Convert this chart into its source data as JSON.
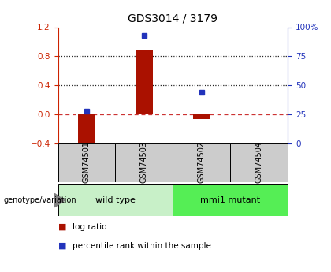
{
  "title": "GDS3014 / 3179",
  "samples": [
    "GSM74501",
    "GSM74503",
    "GSM74502",
    "GSM74504"
  ],
  "log_ratios": [
    -0.45,
    0.88,
    -0.06,
    0.0
  ],
  "percentile_ranks": [
    28,
    93,
    44,
    null
  ],
  "groups": [
    {
      "label": "wild type",
      "indices": [
        0,
        1
      ],
      "color": "#c8f0c8"
    },
    {
      "label": "mmi1 mutant",
      "indices": [
        2,
        3
      ],
      "color": "#55ee55"
    }
  ],
  "ylim_left": [
    -0.4,
    1.2
  ],
  "ylim_right": [
    0,
    100
  ],
  "bar_color": "#aa1100",
  "square_color": "#2233bb",
  "zero_line_color": "#cc3333",
  "dotline_color": "#222222",
  "title_fontsize": 10,
  "axis_color_left": "#cc2200",
  "axis_color_right": "#2233bb",
  "sample_box_color": "#cccccc",
  "legend_red_label": "log ratio",
  "legend_blue_label": "percentile rank within the sample",
  "genotype_label": "genotype/variation"
}
